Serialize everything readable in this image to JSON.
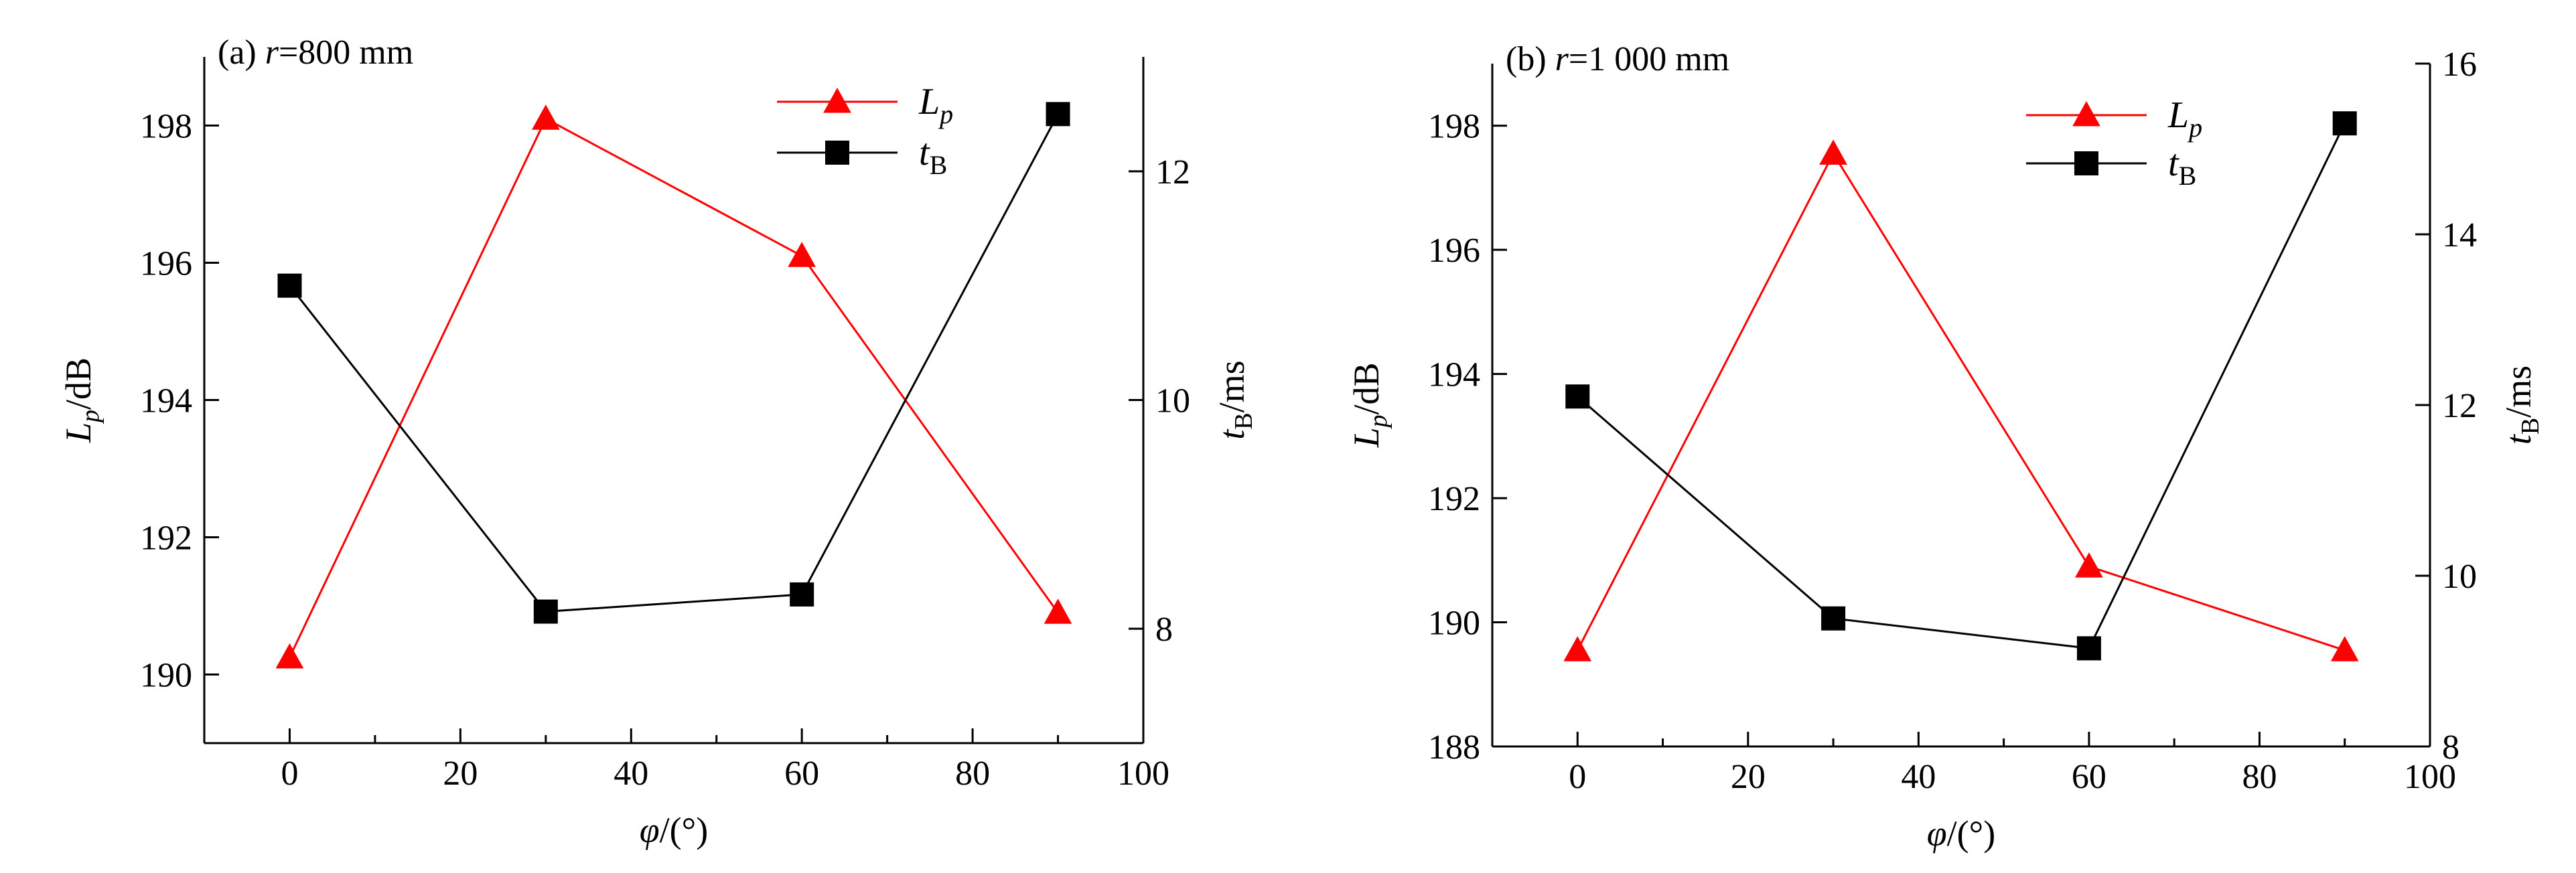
{
  "figure": {
    "panels": [
      {
        "title_label": "(a) ",
        "title_var": "r",
        "title_value": "=800 mm",
        "x_axis": {
          "label_symbol": "φ",
          "label_suffix": "/(°)",
          "range": [
            -10,
            100
          ],
          "ticks": [
            0,
            20,
            40,
            60,
            80,
            100
          ]
        },
        "left_axis": {
          "label_symbol": "L",
          "label_sub": "p",
          "label_suffix": "/dB",
          "range": [
            189,
            199
          ],
          "ticks": [
            190,
            192,
            194,
            196,
            198
          ]
        },
        "right_axis": {
          "label_symbol": "t",
          "label_sub": "B",
          "label_suffix": "/ms",
          "range": [
            7,
            13
          ],
          "ticks": [
            8,
            10,
            12
          ]
        }
      },
      {
        "title_label": "(b) ",
        "title_var": "r",
        "title_value": "=1 000 mm",
        "x_axis": {
          "label_symbol": "φ",
          "label_suffix": "/(°)",
          "range": [
            -10,
            100
          ],
          "ticks": [
            0,
            20,
            40,
            60,
            80,
            100
          ]
        },
        "left_axis": {
          "label_symbol": "L",
          "label_sub": "p",
          "label_suffix": "/dB",
          "range": [
            188,
            199
          ],
          "ticks": [
            188,
            190,
            192,
            194,
            196,
            198
          ]
        },
        "right_axis": {
          "label_symbol": "t",
          "label_sub": "B",
          "label_suffix": "/ms",
          "range": [
            8,
            16
          ],
          "ticks": [
            8,
            10,
            12,
            14,
            16
          ]
        }
      }
    ]
  },
  "chart_data": [
    {
      "type": "line",
      "title": "(a) r=800 mm",
      "xlabel": "φ/(°)",
      "ylabel": "Lp/dB",
      "y2label": "tB/ms",
      "xlim": [
        -10,
        100
      ],
      "ylim": [
        189,
        199
      ],
      "y2lim": [
        7,
        13
      ],
      "grid": false,
      "legend_position": "top-center",
      "x": [
        0,
        30,
        60,
        90
      ],
      "series": [
        {
          "name": "Lp",
          "axis": "left",
          "color": "#ff0000",
          "marker": "triangle",
          "values": [
            190.25,
            198.1,
            196.1,
            190.9
          ]
        },
        {
          "name": "tB",
          "axis": "right",
          "color": "#000000",
          "marker": "square",
          "values": [
            11.0,
            8.15,
            8.3,
            12.5
          ]
        }
      ]
    },
    {
      "type": "line",
      "title": "(b) r=1 000 mm",
      "xlabel": "φ/(°)",
      "ylabel": "Lp/dB",
      "y2label": "tB/ms",
      "xlim": [
        -10,
        100
      ],
      "ylim": [
        188,
        199
      ],
      "y2lim": [
        8,
        16
      ],
      "grid": false,
      "legend_position": "top-center",
      "x": [
        0,
        30,
        60,
        90
      ],
      "series": [
        {
          "name": "Lp",
          "axis": "left",
          "color": "#ff0000",
          "marker": "triangle",
          "values": [
            189.55,
            197.55,
            190.9,
            189.55
          ]
        },
        {
          "name": "tB",
          "axis": "right",
          "color": "#000000",
          "marker": "square",
          "values": [
            12.1,
            9.5,
            9.15,
            15.3
          ]
        }
      ]
    }
  ]
}
